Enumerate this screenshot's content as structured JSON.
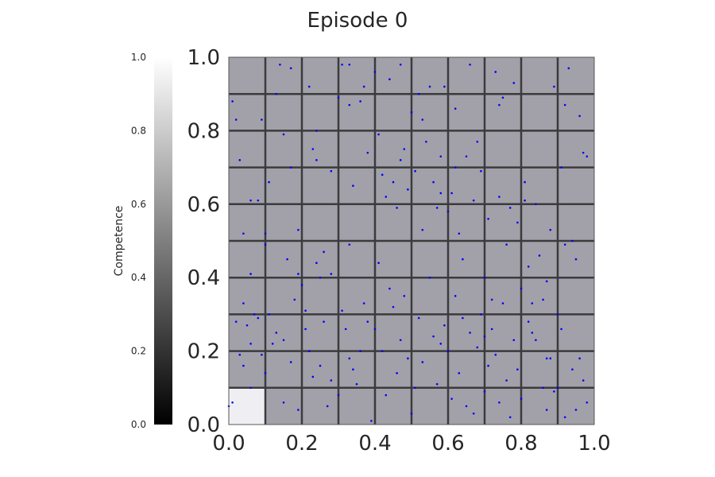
{
  "chart_data": {
    "type": "heatmap",
    "title": "Episode 0",
    "x_ticks": [
      "0.0",
      "0.2",
      "0.4",
      "0.6",
      "0.8",
      "1.0"
    ],
    "y_ticks": [
      "0.0",
      "0.2",
      "0.4",
      "0.6",
      "0.8",
      "1.0"
    ],
    "xlim": [
      0,
      1
    ],
    "ylim": [
      0,
      1
    ],
    "grid_cells": 10,
    "grid": true,
    "cell_competence_default": 0.36,
    "cell_competence_overrides": [
      {
        "col": 0,
        "row": 0,
        "value": 0.95
      }
    ],
    "colorbar": {
      "label": "Competence",
      "range": [
        0,
        1
      ],
      "ticks": [
        "0.0",
        "0.2",
        "0.4",
        "0.6",
        "0.8",
        "1.0"
      ],
      "colormap": "gray",
      "placement": "left"
    },
    "scatter": {
      "color": "#0000ff",
      "points": [
        [
          0.01,
          0.88
        ],
        [
          0.02,
          0.83
        ],
        [
          0.03,
          0.72
        ],
        [
          0.04,
          0.52
        ],
        [
          0.06,
          0.61
        ],
        [
          0.06,
          0.41
        ],
        [
          0.08,
          0.61
        ],
        [
          0.07,
          0.3
        ],
        [
          0.09,
          0.83
        ],
        [
          0.1,
          0.52
        ],
        [
          0.11,
          0.66
        ],
        [
          0.1,
          0.49
        ],
        [
          0.13,
          0.9
        ],
        [
          0.14,
          0.98
        ],
        [
          0.15,
          0.79
        ],
        [
          0.17,
          0.97
        ],
        [
          0.17,
          0.7
        ],
        [
          0.19,
          0.53
        ],
        [
          0.19,
          0.41
        ],
        [
          0.22,
          0.92
        ],
        [
          0.23,
          0.75
        ],
        [
          0.24,
          0.72
        ],
        [
          0.24,
          0.8
        ],
        [
          0.25,
          0.4
        ],
        [
          0.26,
          0.47
        ],
        [
          0.28,
          0.69
        ],
        [
          0.28,
          0.41
        ],
        [
          0.3,
          0.89
        ],
        [
          0.31,
          0.98
        ],
        [
          0.33,
          0.98
        ],
        [
          0.33,
          0.87
        ],
        [
          0.34,
          0.65
        ],
        [
          0.36,
          0.88
        ],
        [
          0.37,
          0.92
        ],
        [
          0.38,
          0.74
        ],
        [
          0.4,
          0.96
        ],
        [
          0.41,
          0.79
        ],
        [
          0.42,
          0.68
        ],
        [
          0.43,
          0.62
        ],
        [
          0.44,
          0.94
        ],
        [
          0.45,
          0.66
        ],
        [
          0.46,
          0.59
        ],
        [
          0.47,
          0.98
        ],
        [
          0.48,
          0.75
        ],
        [
          0.49,
          0.64
        ],
        [
          0.5,
          0.85
        ],
        [
          0.51,
          0.69
        ],
        [
          0.52,
          0.9
        ],
        [
          0.53,
          0.83
        ],
        [
          0.54,
          0.77
        ],
        [
          0.55,
          0.92
        ],
        [
          0.56,
          0.66
        ],
        [
          0.57,
          0.59
        ],
        [
          0.58,
          0.73
        ],
        [
          0.59,
          0.92
        ],
        [
          0.6,
          0.58
        ],
        [
          0.61,
          0.63
        ],
        [
          0.62,
          0.86
        ],
        [
          0.63,
          0.52
        ],
        [
          0.64,
          0.45
        ],
        [
          0.65,
          0.73
        ],
        [
          0.66,
          0.98
        ],
        [
          0.67,
          0.61
        ],
        [
          0.68,
          0.77
        ],
        [
          0.69,
          0.69
        ],
        [
          0.7,
          0.4
        ],
        [
          0.71,
          0.56
        ],
        [
          0.72,
          0.34
        ],
        [
          0.73,
          0.96
        ],
        [
          0.74,
          0.87
        ],
        [
          0.75,
          0.89
        ],
        [
          0.76,
          0.49
        ],
        [
          0.77,
          0.59
        ],
        [
          0.78,
          0.93
        ],
        [
          0.79,
          0.55
        ],
        [
          0.8,
          0.37
        ],
        [
          0.81,
          0.61
        ],
        [
          0.82,
          0.43
        ],
        [
          0.83,
          0.33
        ],
        [
          0.84,
          0.6
        ],
        [
          0.85,
          0.46
        ],
        [
          0.86,
          0.34
        ],
        [
          0.87,
          0.39
        ],
        [
          0.88,
          0.53
        ],
        [
          0.89,
          0.92
        ],
        [
          0.9,
          0.3
        ],
        [
          0.91,
          0.7
        ],
        [
          0.92,
          0.87
        ],
        [
          0.93,
          0.97
        ],
        [
          0.94,
          0.5
        ],
        [
          0.95,
          0.45
        ],
        [
          0.96,
          0.84
        ],
        [
          0.97,
          0.74
        ],
        [
          0.98,
          0.73
        ],
        [
          0.02,
          0.28
        ],
        [
          0.03,
          0.19
        ],
        [
          0.04,
          0.33
        ],
        [
          0.05,
          0.27
        ],
        [
          0.06,
          0.22
        ],
        [
          0.08,
          0.29
        ],
        [
          0.09,
          0.19
        ],
        [
          0.1,
          0.14
        ],
        [
          0.12,
          0.22
        ],
        [
          0.13,
          0.25
        ],
        [
          0.15,
          0.23
        ],
        [
          0.16,
          0.45
        ],
        [
          0.18,
          0.34
        ],
        [
          0.19,
          0.04
        ],
        [
          0.21,
          0.31
        ],
        [
          0.22,
          0.2
        ],
        [
          0.23,
          0.13
        ],
        [
          0.24,
          0.44
        ],
        [
          0.25,
          0.16
        ],
        [
          0.26,
          0.28
        ],
        [
          0.27,
          0.05
        ],
        [
          0.28,
          0.12
        ],
        [
          0.3,
          0.08
        ],
        [
          0.31,
          0.31
        ],
        [
          0.32,
          0.26
        ],
        [
          0.33,
          0.18
        ],
        [
          0.34,
          0.15
        ],
        [
          0.35,
          0.11
        ],
        [
          0.36,
          0.2
        ],
        [
          0.37,
          0.33
        ],
        [
          0.38,
          0.28
        ],
        [
          0.39,
          0.01
        ],
        [
          0.4,
          0.26
        ],
        [
          0.41,
          0.44
        ],
        [
          0.42,
          0.2
        ],
        [
          0.43,
          0.08
        ],
        [
          0.44,
          0.37
        ],
        [
          0.45,
          0.32
        ],
        [
          0.46,
          0.14
        ],
        [
          0.47,
          0.23
        ],
        [
          0.48,
          0.35
        ],
        [
          0.49,
          0.18
        ],
        [
          0.5,
          0.03
        ],
        [
          0.51,
          0.1
        ],
        [
          0.52,
          0.29
        ],
        [
          0.53,
          0.17
        ],
        [
          0.55,
          0.4
        ],
        [
          0.56,
          0.24
        ],
        [
          0.57,
          0.11
        ],
        [
          0.58,
          0.22
        ],
        [
          0.59,
          0.27
        ],
        [
          0.6,
          0.2
        ],
        [
          0.61,
          0.07
        ],
        [
          0.62,
          0.35
        ],
        [
          0.63,
          0.14
        ],
        [
          0.64,
          0.29
        ],
        [
          0.65,
          0.05
        ],
        [
          0.66,
          0.25
        ],
        [
          0.67,
          0.03
        ],
        [
          0.68,
          0.21
        ],
        [
          0.69,
          0.3
        ],
        [
          0.7,
          0.09
        ],
        [
          0.71,
          0.16
        ],
        [
          0.72,
          0.26
        ],
        [
          0.73,
          0.19
        ],
        [
          0.74,
          0.06
        ],
        [
          0.75,
          0.33
        ],
        [
          0.76,
          0.12
        ],
        [
          0.77,
          0.02
        ],
        [
          0.78,
          0.23
        ],
        [
          0.79,
          0.15
        ],
        [
          0.8,
          0.07
        ],
        [
          0.82,
          0.28
        ],
        [
          0.84,
          0.23
        ],
        [
          0.86,
          0.1
        ],
        [
          0.87,
          0.04
        ],
        [
          0.88,
          0.18
        ],
        [
          0.89,
          0.09
        ],
        [
          0.9,
          0.1
        ],
        [
          0.91,
          0.26
        ],
        [
          0.92,
          0.02
        ],
        [
          0.94,
          0.15
        ],
        [
          0.95,
          0.04
        ],
        [
          0.96,
          0.18
        ],
        [
          0.97,
          0.12
        ],
        [
          0.98,
          0.06
        ],
        [
          0.0,
          0.05
        ],
        [
          0.01,
          0.06
        ],
        [
          0.04,
          0.16
        ],
        [
          0.06,
          0.1
        ],
        [
          0.11,
          0.3
        ],
        [
          0.15,
          0.06
        ],
        [
          0.17,
          0.17
        ],
        [
          0.2,
          0.38
        ],
        [
          0.21,
          0.26
        ],
        [
          0.53,
          0.53
        ],
        [
          0.58,
          0.63
        ],
        [
          0.62,
          0.7
        ],
        [
          0.7,
          0.24
        ],
        [
          0.74,
          0.62
        ],
        [
          0.81,
          0.66
        ],
        [
          0.83,
          0.25
        ],
        [
          0.87,
          0.18
        ],
        [
          0.92,
          0.49
        ],
        [
          0.33,
          0.49
        ],
        [
          0.47,
          0.72
        ]
      ]
    }
  }
}
